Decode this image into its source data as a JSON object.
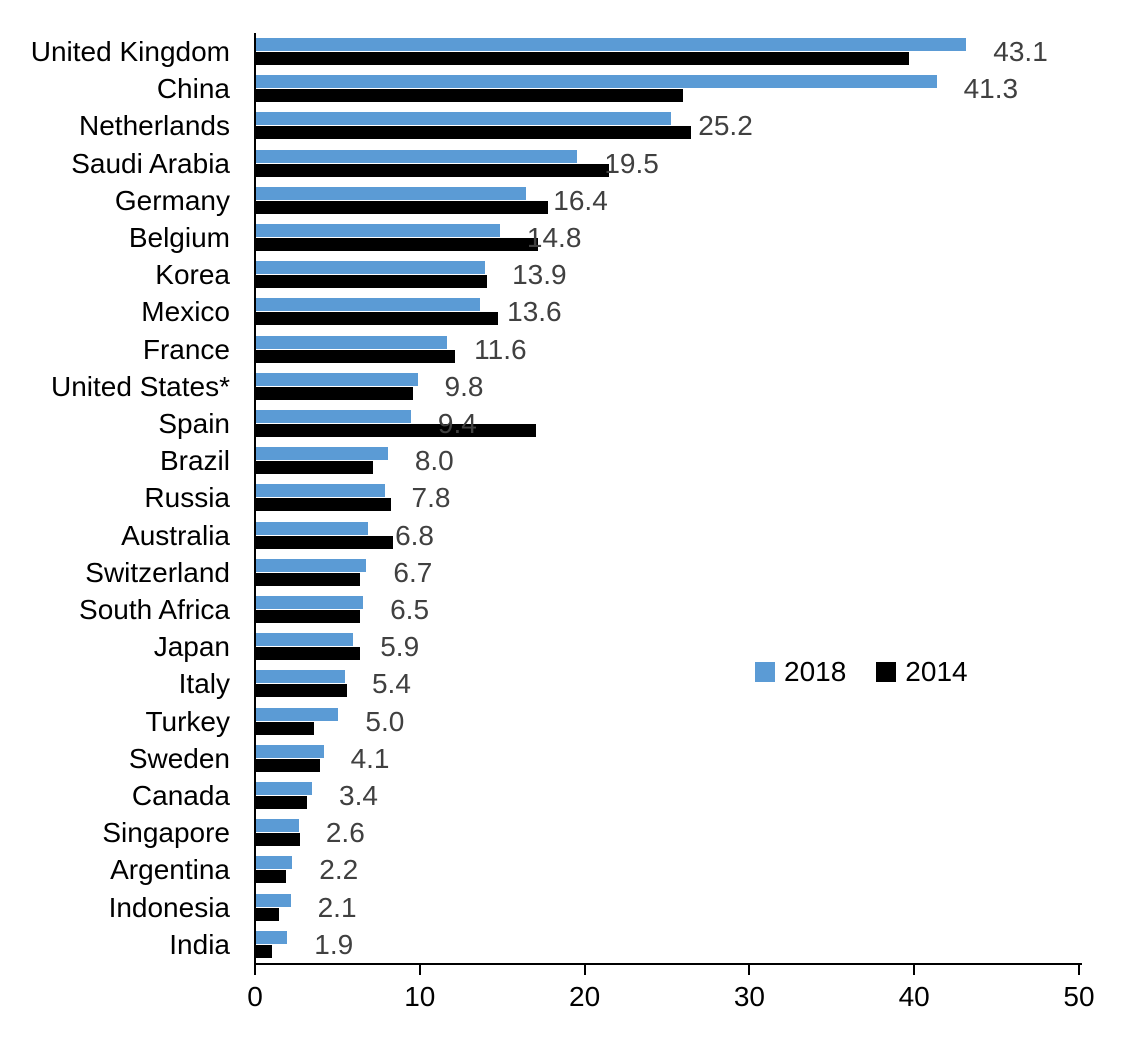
{
  "chart_data": {
    "type": "bar",
    "orientation": "horizontal",
    "title": "",
    "xlabel": "",
    "ylabel": "",
    "xlim": [
      0,
      50
    ],
    "xticks": [
      0,
      10,
      20,
      30,
      40,
      50
    ],
    "grid": false,
    "legend_position": "middle-right",
    "colors": {
      "series_2018": "#5B9BD5",
      "series_2014": "#000000",
      "value_label": "#404040",
      "axis": "#000000"
    },
    "categories": [
      "United Kingdom",
      "China",
      "Netherlands",
      "Saudi Arabia",
      "Germany",
      "Belgium",
      "Korea",
      "Mexico",
      "France",
      "United States*",
      "Spain",
      "Brazil",
      "Russia",
      "Australia",
      "Switzerland",
      "South Africa",
      "Japan",
      "Italy",
      "Turkey",
      "Sweden",
      "Canada",
      "Singapore",
      "Argentina",
      "Indonesia",
      "India"
    ],
    "series": [
      {
        "name": "2018",
        "values": [
          43.1,
          41.3,
          25.2,
          19.5,
          16.4,
          14.8,
          13.9,
          13.6,
          11.6,
          9.8,
          9.4,
          8.0,
          7.8,
          6.8,
          6.7,
          6.5,
          5.9,
          5.4,
          5.0,
          4.1,
          3.4,
          2.6,
          2.2,
          2.1,
          1.9
        ],
        "data_labels": [
          "43.1",
          "41.3",
          "25.2",
          "19.5",
          "16.4",
          "14.8",
          "13.9",
          "13.6",
          "11.6",
          "9.8",
          "9.4",
          "8.0",
          "7.8",
          "6.8",
          "6.7",
          "6.5",
          "5.9",
          "5.4",
          "5.0",
          "4.1",
          "3.4",
          "2.6",
          "2.2",
          "2.1",
          "1.9"
        ]
      },
      {
        "name": "2014",
        "values": [
          39.6,
          25.9,
          26.4,
          21.4,
          17.7,
          17.1,
          14.0,
          14.7,
          12.1,
          9.5,
          17.0,
          7.1,
          8.2,
          8.3,
          6.3,
          6.3,
          6.3,
          5.5,
          3.5,
          3.9,
          3.1,
          2.7,
          1.8,
          1.4,
          1.0
        ],
        "data_labels": []
      }
    ]
  },
  "legend": {
    "items": [
      {
        "label": "2018",
        "color": "#5B9BD5"
      },
      {
        "label": "2014",
        "color": "#000000"
      }
    ]
  },
  "axis": {
    "tick_labels": [
      "0",
      "10",
      "20",
      "30",
      "40",
      "50"
    ]
  }
}
